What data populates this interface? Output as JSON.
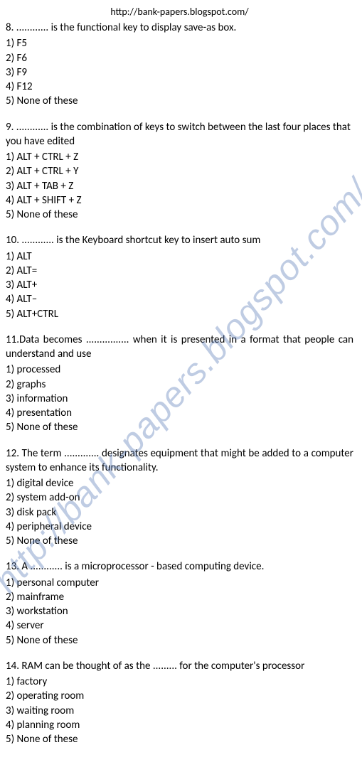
{
  "header": {
    "url": "http://bank-papers.blogspot.com/"
  },
  "watermark": {
    "text": "http://bank-papers.blogspot.com/"
  },
  "questions": [
    {
      "num": "8",
      "text": "8. ............ is the functional key to display save-as box.",
      "justify": false,
      "options": [
        "1) F5",
        "2) F6",
        "3) F9",
        "4) F12",
        "5) None of these"
      ]
    },
    {
      "num": "9",
      "text": "9. ............ is the combination of keys to switch between the last four places that you have edited",
      "justify": false,
      "options": [
        "1) ALT + CTRL + Z",
        "2) ALT + CTRL + Y",
        "3) ALT + TAB + Z",
        "4) ALT + SHIFT + Z",
        "5) None of these"
      ]
    },
    {
      "num": "10",
      "text": "10. ............ is the Keyboard shortcut key to insert auto sum",
      "justify": false,
      "options": [
        "1) ALT",
        "2) ALT=",
        "3) ALT+",
        "4) ALT–",
        "5) ALT+CTRL"
      ]
    },
    {
      "num": "11",
      "text": "11.Data becomes ................ when it is presented in a format that people can understand and use",
      "justify": true,
      "options": [
        "1) processed",
        "2) graphs",
        "3) information",
        "4) presentation",
        "5) None of these"
      ]
    },
    {
      "num": "12",
      "text": "12. The term ............. designates equipment that might be added to a computer system to enhance its functionality.",
      "justify": true,
      "options": [
        "1) digital device",
        "2) system add-on",
        "3) disk pack",
        "4) peripheral device",
        "5) None of these"
      ]
    },
    {
      "num": "13",
      "text": "13.    A ............ is a microprocessor - based computing device.",
      "justify": false,
      "options": [
        "1) personal computer",
        "2) mainframe",
        "3) workstation",
        "4) server",
        "5) None of these"
      ]
    },
    {
      "num": "14",
      "text": "14.    RAM can be thought of as the ......... for the computer's processor",
      "justify": false,
      "options": [
        "1) factory",
        "2) operating room",
        "3) waiting room",
        "4) planning room",
        "5) None of these"
      ]
    }
  ]
}
